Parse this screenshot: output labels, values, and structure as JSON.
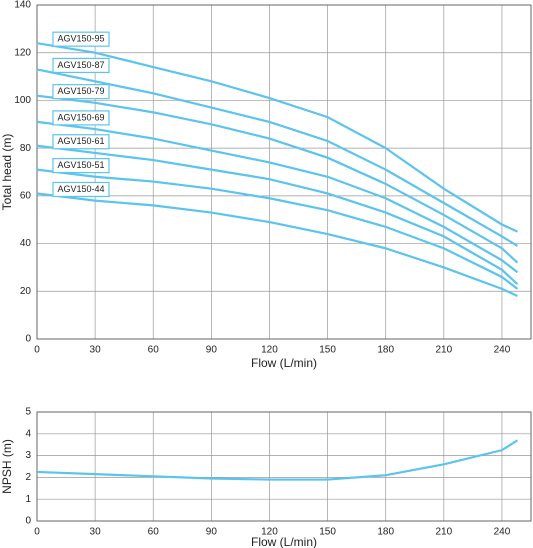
{
  "chart_data": [
    {
      "type": "line",
      "x_label": "Flow (L/min)",
      "y_label": "Total head (m)",
      "x": [
        0,
        30,
        60,
        90,
        120,
        150,
        180,
        210,
        240,
        248
      ],
      "xlim": [
        0,
        255
      ],
      "xticks": [
        0,
        30,
        60,
        90,
        120,
        150,
        180,
        210,
        240
      ],
      "ylim": [
        0,
        140
      ],
      "yticks": [
        0,
        20,
        40,
        60,
        80,
        100,
        120,
        140
      ],
      "grid": true,
      "series": [
        {
          "name": "AGV150-95",
          "color": "#5bc4ee",
          "values": [
            124,
            120,
            114,
            108,
            101,
            93,
            80,
            63,
            48,
            45
          ]
        },
        {
          "name": "AGV150-87",
          "color": "#5bc4ee",
          "values": [
            113,
            108,
            103,
            97,
            91,
            83,
            71,
            57,
            43,
            39
          ]
        },
        {
          "name": "AGV150-79",
          "color": "#5bc4ee",
          "values": [
            102,
            99,
            95,
            90,
            84,
            76,
            65,
            52,
            38,
            32
          ]
        },
        {
          "name": "AGV150-69",
          "color": "#5bc4ee",
          "values": [
            91,
            88,
            84,
            79,
            74,
            68,
            59,
            47,
            33,
            28
          ]
        },
        {
          "name": "AGV150-61",
          "color": "#5bc4ee",
          "values": [
            81,
            78,
            75,
            71,
            67,
            61,
            53,
            43,
            29,
            23
          ]
        },
        {
          "name": "AGV150-51",
          "color": "#5bc4ee",
          "values": [
            71,
            68,
            66,
            63,
            59,
            54,
            47,
            38,
            26,
            21
          ]
        },
        {
          "name": "AGV150-44",
          "color": "#5bc4ee",
          "values": [
            61,
            58,
            56,
            53,
            49,
            44,
            38,
            30,
            21,
            18
          ]
        }
      ]
    },
    {
      "type": "line",
      "x_label": "Flow (L/min)",
      "y_label": "NPSH (m)",
      "x": [
        0,
        30,
        60,
        90,
        120,
        150,
        180,
        210,
        240,
        248
      ],
      "xlim": [
        0,
        255
      ],
      "xticks": [
        0,
        30,
        60,
        90,
        120,
        150,
        180,
        210,
        240
      ],
      "ylim": [
        0,
        5
      ],
      "yticks": [
        0,
        1,
        2,
        3,
        4,
        5
      ],
      "grid": true,
      "series": [
        {
          "color": "#5bc4ee",
          "values": [
            2.25,
            2.15,
            2.05,
            1.95,
            1.9,
            1.9,
            2.1,
            2.6,
            3.25,
            3.7
          ]
        }
      ]
    }
  ]
}
